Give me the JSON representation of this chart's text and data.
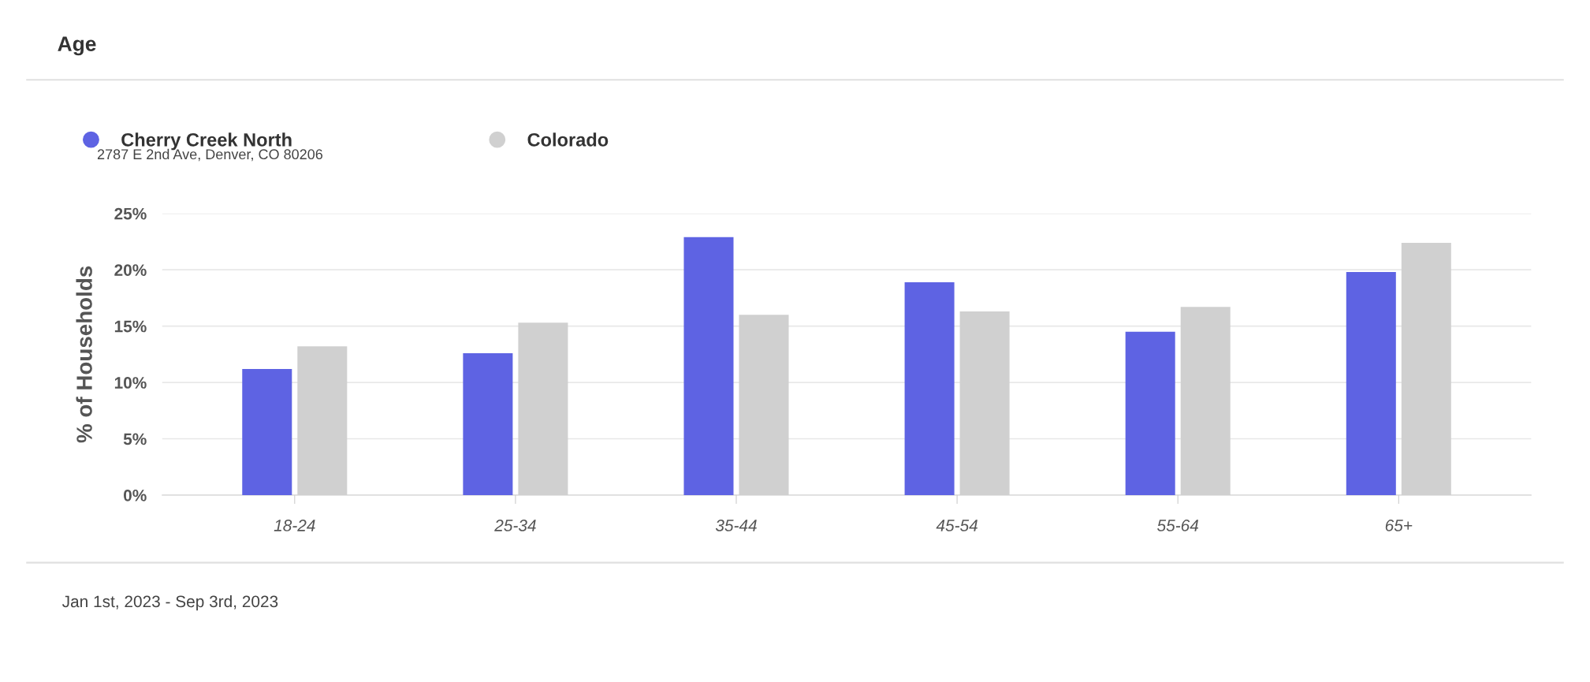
{
  "chart_data": {
    "type": "bar",
    "title": "Age",
    "ylabel": "% of Households",
    "categories": [
      "18-24",
      "25-34",
      "35-44",
      "45-54",
      "55-64",
      "65+"
    ],
    "series": [
      {
        "name": "Cherry Creek North",
        "color": "#5e63e3",
        "values": [
          11.2,
          12.6,
          22.9,
          18.9,
          14.5,
          19.8
        ]
      },
      {
        "name": "Colorado",
        "color": "#d0d0d0",
        "values": [
          13.2,
          15.3,
          16.0,
          16.3,
          16.7,
          22.4
        ]
      }
    ],
    "ylim": [
      0,
      25
    ],
    "yticks": [
      {
        "value": 0,
        "label": "0%"
      },
      {
        "value": 5,
        "label": "5%"
      },
      {
        "value": 10,
        "label": "10%"
      },
      {
        "value": 15,
        "label": "15%"
      },
      {
        "value": 20,
        "label": "20%"
      },
      {
        "value": 25,
        "label": "25%"
      }
    ],
    "grid": "y",
    "legend": "top left",
    "annotations": [
      "2787 E 2nd Ave, Denver, CO 80206",
      "Jan 1st, 2023 - Sep 3rd, 2023"
    ]
  }
}
